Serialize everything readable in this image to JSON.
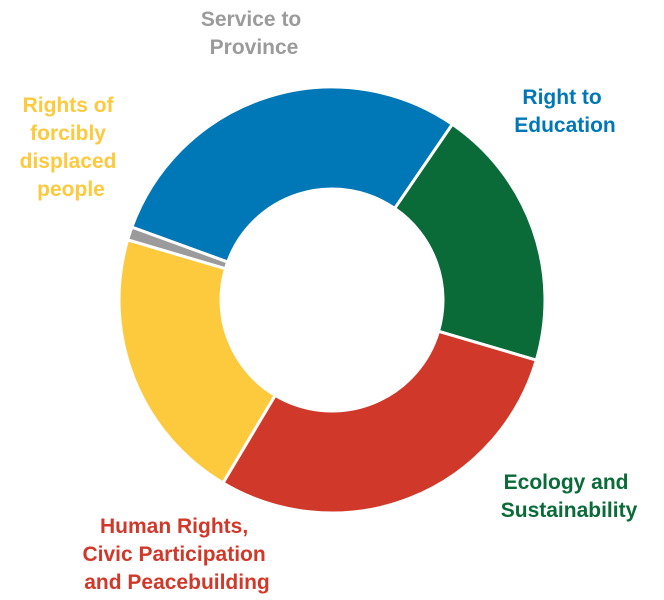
{
  "chart_data": {
    "type": "pie",
    "variant": "donut",
    "slices": [
      {
        "key": "education",
        "label_lines": [
          "Right to",
          "Education"
        ],
        "value": 29,
        "color": "#0077B6"
      },
      {
        "key": "ecology",
        "label_lines": [
          "Ecology and",
          "Sustainability"
        ],
        "value": 20,
        "color": "#0A6B39"
      },
      {
        "key": "human_rights",
        "label_lines": [
          "Human Rights,",
          "Civic Participation",
          "and Peacebuilding"
        ],
        "value": 29,
        "color": "#D0382A"
      },
      {
        "key": "displaced",
        "label_lines": [
          "Rights of",
          "forcibly",
          "displaced",
          "people"
        ],
        "value": 21,
        "color": "#FDC93D"
      },
      {
        "key": "province",
        "label_lines": [
          "Service to",
          "Province"
        ],
        "value": 1,
        "color": "#9B9B9B"
      }
    ],
    "legend": "none"
  }
}
